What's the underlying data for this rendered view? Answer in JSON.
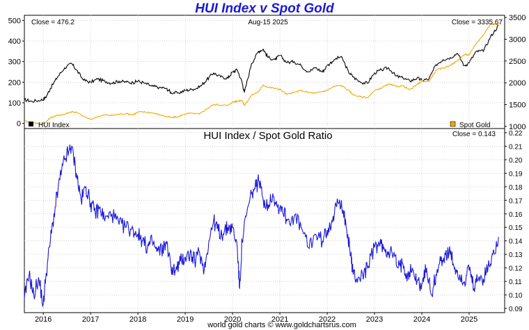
{
  "title": "HUI Index v Spot Gold",
  "credit": "world gold charts © www.goldchartsrus.com",
  "colors": {
    "title": "#1a18d6",
    "hui": "#000000",
    "gold": "#f2a900",
    "ratio": "#1a18d6",
    "grid": "#c8c8c8"
  },
  "chart_data": [
    {
      "type": "line",
      "title": "",
      "top_left_label": "Close = 476.2",
      "top_center_label": "Aug-15  2025",
      "top_right_label": "Close = 3335.67",
      "legend": [
        "HUI Index",
        "Spot Gold"
      ],
      "left_axis": {
        "range": [
          -25,
          525
        ],
        "ticks": [
          0,
          100,
          200,
          300,
          400,
          500
        ],
        "tick_labels": [
          "0",
          "100",
          "200",
          "300",
          "400",
          "500"
        ]
      },
      "right_axis": {
        "range": [
          950,
          3550
        ],
        "ticks": [
          1000,
          1500,
          2000,
          2500,
          3000,
          3500
        ],
        "tick_labels": [
          "1000",
          "1500",
          "2000",
          "2500",
          "3000",
          "3500"
        ]
      },
      "x_range": [
        2015.6,
        2025.75
      ],
      "series": [
        {
          "name": "HUI Index",
          "axis": "left",
          "x": [
            2015.6,
            2015.75,
            2015.95,
            2016.05,
            2016.15,
            2016.3,
            2016.45,
            2016.6,
            2016.7,
            2016.85,
            2017.0,
            2017.15,
            2017.3,
            2017.45,
            2017.6,
            2017.75,
            2017.9,
            2018.0,
            2018.15,
            2018.3,
            2018.45,
            2018.6,
            2018.7,
            2018.85,
            2019.0,
            2019.15,
            2019.3,
            2019.45,
            2019.6,
            2019.75,
            2019.9,
            2020.0,
            2020.1,
            2020.2,
            2020.25,
            2020.4,
            2020.55,
            2020.65,
            2020.75,
            2020.9,
            2021.0,
            2021.15,
            2021.3,
            2021.45,
            2021.6,
            2021.75,
            2021.9,
            2022.0,
            2022.15,
            2022.3,
            2022.45,
            2022.55,
            2022.7,
            2022.85,
            2023.0,
            2023.15,
            2023.3,
            2023.45,
            2023.6,
            2023.75,
            2023.9,
            2024.0,
            2024.15,
            2024.3,
            2024.45,
            2024.6,
            2024.75,
            2024.9,
            2025.0,
            2025.15,
            2025.3,
            2025.45,
            2025.62
          ],
          "y": [
            115,
            108,
            112,
            125,
            170,
            225,
            270,
            290,
            260,
            210,
            200,
            215,
            205,
            195,
            205,
            200,
            198,
            205,
            195,
            180,
            175,
            170,
            150,
            148,
            160,
            165,
            175,
            210,
            245,
            225,
            220,
            250,
            260,
            200,
            150,
            290,
            350,
            360,
            320,
            310,
            330,
            295,
            300,
            280,
            250,
            270,
            250,
            280,
            310,
            325,
            250,
            225,
            200,
            195,
            245,
            260,
            270,
            230,
            220,
            205,
            220,
            210,
            215,
            285,
            310,
            320,
            340,
            280,
            295,
            350,
            350,
            420,
            476.2
          ]
        },
        {
          "name": "Spot Gold",
          "axis": "right",
          "x": [
            2015.6,
            2015.75,
            2015.95,
            2016.05,
            2016.15,
            2016.3,
            2016.45,
            2016.6,
            2016.7,
            2016.85,
            2017.0,
            2017.15,
            2017.3,
            2017.45,
            2017.6,
            2017.75,
            2017.9,
            2018.0,
            2018.15,
            2018.3,
            2018.45,
            2018.6,
            2018.7,
            2018.85,
            2019.0,
            2019.15,
            2019.3,
            2019.45,
            2019.6,
            2019.75,
            2019.9,
            2020.0,
            2020.1,
            2020.2,
            2020.25,
            2020.4,
            2020.55,
            2020.65,
            2020.75,
            2020.9,
            2021.0,
            2021.15,
            2021.3,
            2021.45,
            2021.6,
            2021.75,
            2021.9,
            2022.0,
            2022.15,
            2022.3,
            2022.45,
            2022.55,
            2022.7,
            2022.85,
            2023.0,
            2023.15,
            2023.3,
            2023.45,
            2023.6,
            2023.75,
            2023.9,
            2024.0,
            2024.15,
            2024.3,
            2024.45,
            2024.6,
            2024.75,
            2024.9,
            2025.0,
            2025.15,
            2025.3,
            2025.45,
            2025.62
          ],
          "y": [
            1120,
            1100,
            1060,
            1090,
            1200,
            1250,
            1280,
            1340,
            1320,
            1230,
            1160,
            1220,
            1260,
            1250,
            1280,
            1290,
            1270,
            1330,
            1330,
            1310,
            1270,
            1230,
            1200,
            1220,
            1290,
            1300,
            1280,
            1400,
            1500,
            1490,
            1480,
            1560,
            1580,
            1600,
            1480,
            1710,
            1800,
            1950,
            1900,
            1870,
            1850,
            1730,
            1780,
            1820,
            1780,
            1760,
            1800,
            1830,
            1920,
            1940,
            1830,
            1720,
            1680,
            1660,
            1820,
            1880,
            1970,
            1920,
            1930,
            1840,
            1960,
            2040,
            2030,
            2290,
            2340,
            2400,
            2500,
            2650,
            2640,
            2900,
            3100,
            3350,
            3335.67
          ]
        }
      ]
    },
    {
      "type": "line",
      "title": "HUI Index  /  Spot Gold Ratio",
      "top_right_label": "Close = 0.143",
      "xlabel": "",
      "ylabel": "",
      "ylim": [
        0.09,
        0.22
      ],
      "y_ticks": [
        0.09,
        0.1,
        0.11,
        0.12,
        0.13,
        0.14,
        0.15,
        0.16,
        0.17,
        0.18,
        0.19,
        0.2,
        0.21,
        0.22
      ],
      "y_tick_labels": [
        "0.09",
        "0.10",
        "0.11",
        "0.12",
        "0.13",
        "0.14",
        "0.15",
        "0.16",
        "0.17",
        "0.18",
        "0.19",
        "0.20",
        "0.21",
        "0.22"
      ],
      "x_range": [
        2015.6,
        2025.75
      ],
      "x_ticks": [
        2016,
        2017,
        2018,
        2019,
        2020,
        2021,
        2022,
        2023,
        2024,
        2025
      ],
      "x_tick_labels": [
        "2016",
        "2017",
        "2018",
        "2019",
        "2020",
        "2021",
        "2022",
        "2023",
        "2024",
        "2025"
      ],
      "series": [
        {
          "name": "HUI Index / Spot Gold Ratio",
          "x": [
            2015.6,
            2015.7,
            2015.8,
            2015.9,
            2016.0,
            2016.05,
            2016.15,
            2016.25,
            2016.35,
            2016.45,
            2016.55,
            2016.6,
            2016.7,
            2016.8,
            2016.9,
            2017.0,
            2017.1,
            2017.2,
            2017.3,
            2017.45,
            2017.6,
            2017.75,
            2017.9,
            2018.0,
            2018.1,
            2018.2,
            2018.3,
            2018.4,
            2018.5,
            2018.6,
            2018.7,
            2018.8,
            2018.9,
            2019.0,
            2019.1,
            2019.2,
            2019.3,
            2019.4,
            2019.5,
            2019.6,
            2019.7,
            2019.8,
            2019.9,
            2020.0,
            2020.1,
            2020.15,
            2020.2,
            2020.3,
            2020.4,
            2020.5,
            2020.55,
            2020.65,
            2020.75,
            2020.85,
            2020.95,
            2021.05,
            2021.15,
            2021.3,
            2021.45,
            2021.6,
            2021.75,
            2021.9,
            2022.0,
            2022.1,
            2022.2,
            2022.3,
            2022.4,
            2022.5,
            2022.55,
            2022.65,
            2022.75,
            2022.85,
            2023.0,
            2023.1,
            2023.2,
            2023.3,
            2023.4,
            2023.5,
            2023.6,
            2023.7,
            2023.8,
            2023.9,
            2024.0,
            2024.1,
            2024.2,
            2024.3,
            2024.4,
            2024.5,
            2024.6,
            2024.7,
            2024.8,
            2024.9,
            2025.0,
            2025.1,
            2025.2,
            2025.3,
            2025.4,
            2025.5,
            2025.62
          ],
          "y": [
            0.097,
            0.115,
            0.1,
            0.113,
            0.093,
            0.112,
            0.14,
            0.165,
            0.185,
            0.2,
            0.207,
            0.21,
            0.19,
            0.17,
            0.18,
            0.168,
            0.16,
            0.165,
            0.155,
            0.16,
            0.152,
            0.15,
            0.148,
            0.145,
            0.14,
            0.135,
            0.14,
            0.132,
            0.133,
            0.138,
            0.12,
            0.118,
            0.125,
            0.128,
            0.13,
            0.125,
            0.132,
            0.118,
            0.14,
            0.155,
            0.147,
            0.145,
            0.15,
            0.15,
            0.135,
            0.105,
            0.14,
            0.16,
            0.175,
            0.18,
            0.185,
            0.17,
            0.167,
            0.175,
            0.165,
            0.165,
            0.155,
            0.158,
            0.15,
            0.135,
            0.145,
            0.14,
            0.148,
            0.155,
            0.165,
            0.17,
            0.15,
            0.13,
            0.115,
            0.112,
            0.115,
            0.12,
            0.135,
            0.138,
            0.135,
            0.132,
            0.13,
            0.12,
            0.123,
            0.115,
            0.12,
            0.11,
            0.108,
            0.12,
            0.1,
            0.115,
            0.125,
            0.13,
            0.13,
            0.12,
            0.115,
            0.11,
            0.118,
            0.105,
            0.112,
            0.112,
            0.12,
            0.13,
            0.143
          ]
        }
      ]
    }
  ]
}
